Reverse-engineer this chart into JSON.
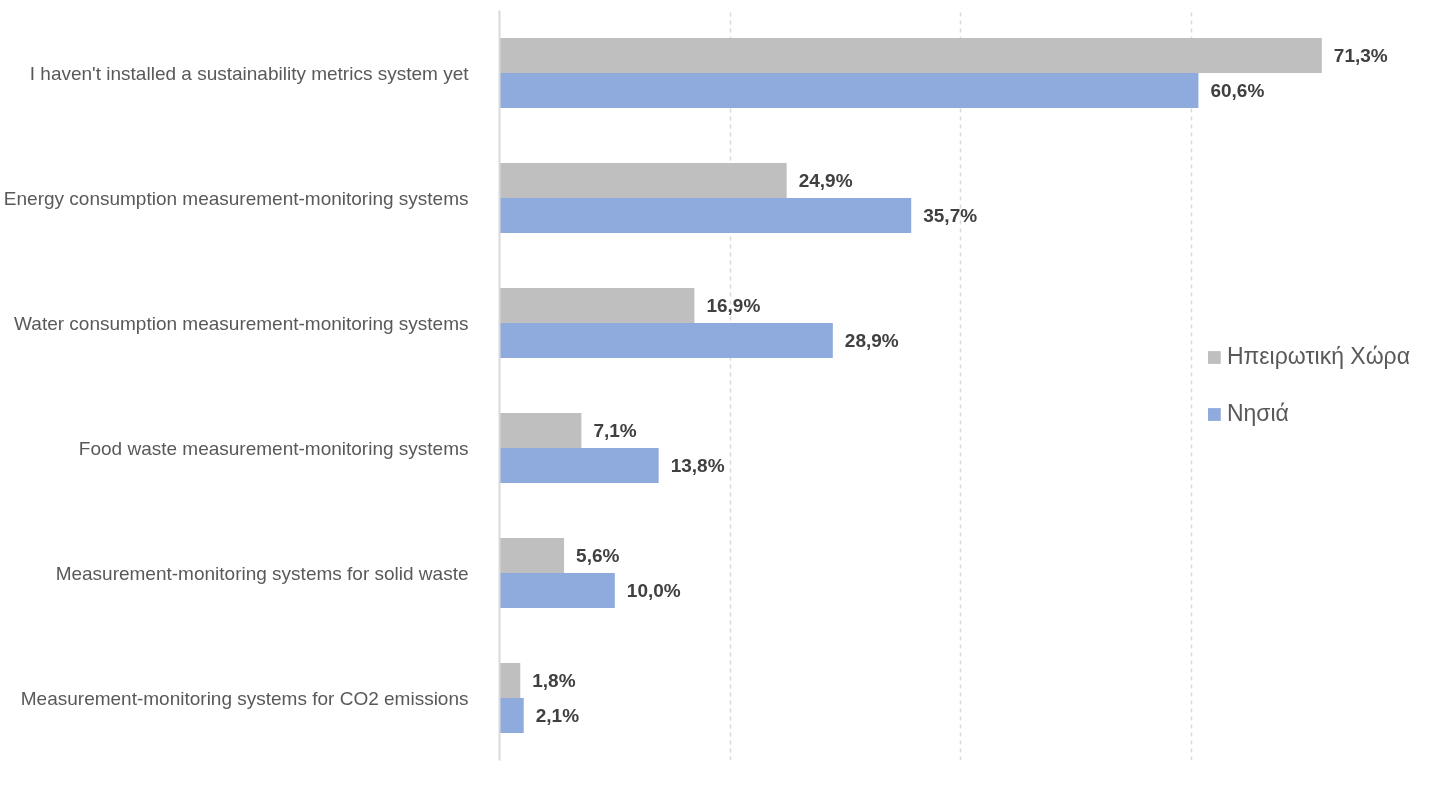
{
  "chart_data": {
    "type": "bar",
    "orientation": "horizontal",
    "categories": [
      "I haven't installed a sustainability metrics system yet",
      "Energy consumption measurement-monitoring systems",
      "Water consumption measurement-monitoring systems",
      "Food waste measurement-monitoring systems",
      "Measurement-monitoring systems for solid waste",
      "Measurement-monitoring systems for CO2 emissions"
    ],
    "series": [
      {
        "name": "Ηπειρωτική Χώρα",
        "color": "#bfbfbf",
        "values": [
          71.3,
          24.9,
          16.9,
          7.1,
          5.6,
          1.8
        ],
        "value_labels": [
          "71,3%",
          "24,9%",
          "16,9%",
          "7,1%",
          "5,6%",
          "1,8%"
        ]
      },
      {
        "name": "Νησιά",
        "color": "#8faadc",
        "values": [
          60.6,
          35.7,
          28.9,
          13.8,
          10.0,
          2.1
        ],
        "value_labels": [
          "60,6%",
          "35,7%",
          "28,9%",
          "13,8%",
          "10,0%",
          "2,1%"
        ]
      }
    ],
    "xticks": [
      {
        "value": 20,
        "label": null
      },
      {
        "value": 40,
        "label": null
      },
      {
        "value": 60,
        "label": null
      }
    ],
    "tick_labels": "y",
    "grid": "x",
    "legend": "right"
  }
}
